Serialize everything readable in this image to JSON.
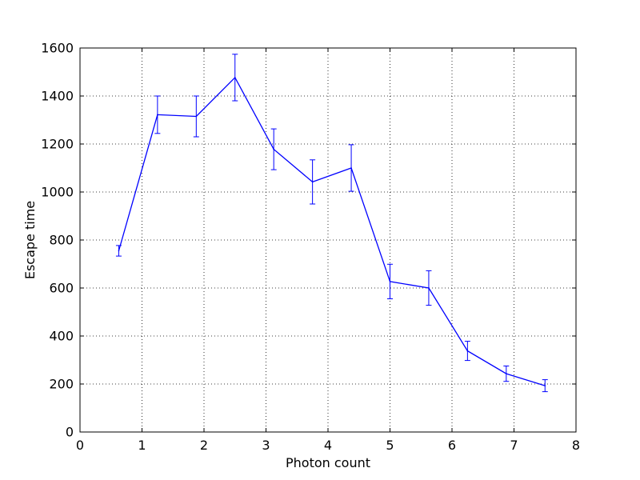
{
  "chart_data": {
    "type": "line",
    "xlabel": "Photon count",
    "ylabel": "Escape time",
    "xlim": [
      0,
      8
    ],
    "ylim": [
      0,
      1600
    ],
    "xticks": [
      0,
      1,
      2,
      3,
      4,
      5,
      6,
      7,
      8
    ],
    "yticks": [
      0,
      200,
      400,
      600,
      800,
      1000,
      1200,
      1400,
      1600
    ],
    "grid": true,
    "error_bars": true,
    "series": [
      {
        "color": "#0000ff",
        "x": [
          0.625,
          1.25,
          1.875,
          2.5,
          3.125,
          3.75,
          4.375,
          5.0,
          5.625,
          6.25,
          6.875,
          7.5
        ],
        "y": [
          755,
          1322,
          1315,
          1477,
          1178,
          1042,
          1100,
          627,
          600,
          338,
          243,
          193
        ],
        "err": [
          22,
          78,
          85,
          97,
          85,
          92,
          97,
          72,
          72,
          40,
          32,
          25
        ]
      }
    ]
  }
}
